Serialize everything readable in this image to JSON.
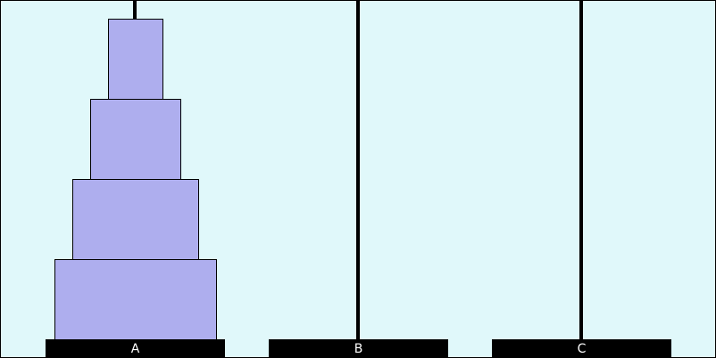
{
  "pegs": [
    {
      "label": "A"
    },
    {
      "label": "B"
    },
    {
      "label": "C"
    }
  ]
}
